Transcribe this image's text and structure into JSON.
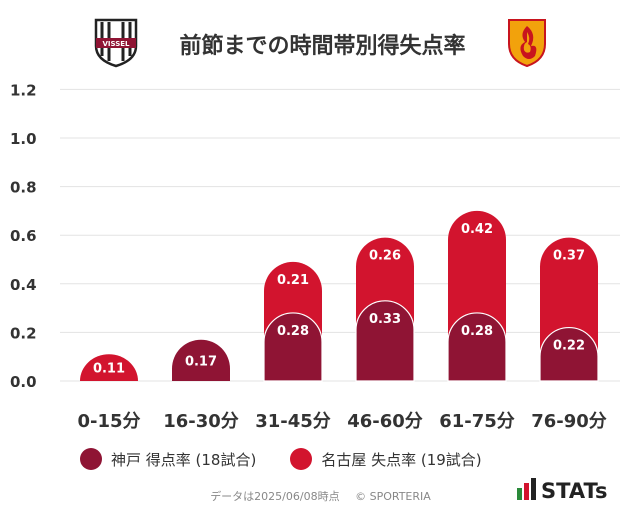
{
  "header": {
    "title": "前節までの時間帯別得失点率",
    "left_logo_text": "VISSEL",
    "left_logo_icon": "vissel-kobe-crest-icon",
    "right_logo_icon": "nagoya-grampus-crest-icon"
  },
  "chart_data": {
    "type": "bar",
    "stacked": true,
    "categories": [
      "0-15分",
      "16-30分",
      "31-45分",
      "46-60分",
      "61-75分",
      "76-90分"
    ],
    "series": [
      {
        "name": "神戸 得点率 (18試合)",
        "color": "#8f1434",
        "values": [
          null,
          0.17,
          0.28,
          0.33,
          0.28,
          0.22
        ],
        "labels": [
          "",
          "0.17",
          "0.28",
          "0.33",
          "0.28",
          "0.22"
        ]
      },
      {
        "name": "名古屋 失点率 (19試合)",
        "color": "#d2142e",
        "values": [
          0.11,
          null,
          0.21,
          0.26,
          0.42,
          0.37
        ],
        "labels": [
          "0.11",
          "",
          "0.21",
          "0.26",
          "0.42",
          "0.37"
        ]
      }
    ],
    "yticks": [
      "1.2",
      "1.0",
      "0.8",
      "0.6",
      "0.4",
      "0.2",
      "0.0"
    ],
    "ylim": [
      0,
      1.2
    ],
    "grid": true
  },
  "legend": [
    {
      "label": "神戸 得点率 (18試合)",
      "color": "#8f1434"
    },
    {
      "label": "名古屋 失点率 (19試合)",
      "color": "#d2142e"
    }
  ],
  "footer": {
    "note": "データは2025/06/08時点",
    "copyright": "© SPORTERIA"
  },
  "brand": {
    "logo_text": "STATs",
    "logo_icon": "stats-bars-icon"
  }
}
